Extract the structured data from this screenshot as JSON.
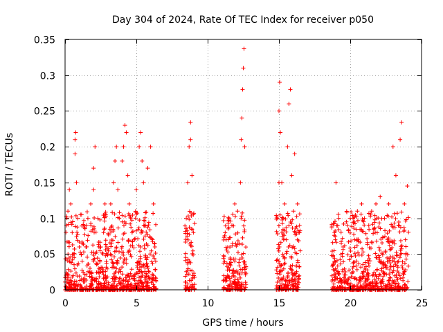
{
  "chart_data": {
    "type": "scatter",
    "title": "Day 304 of 2024, Rate Of TEC Index for receiver p050",
    "xlabel": "GPS time / hours",
    "ylabel": "ROTI / TECUs",
    "xlim": [
      0,
      25
    ],
    "ylim": [
      0,
      0.35
    ],
    "grid": true,
    "marker": "+",
    "color": "#ff0000",
    "x_ticks": [
      0,
      5,
      10,
      15,
      20,
      25
    ],
    "x_tick_labels": [
      "0",
      "5",
      "10",
      "15",
      "20",
      "25"
    ],
    "y_ticks": [
      0,
      0.05,
      0.1,
      0.15,
      0.2,
      0.25,
      0.3,
      0.35
    ],
    "y_tick_labels": [
      "0",
      "0.05",
      "0.1",
      "0.15",
      "0.2",
      "0.25",
      "0.3",
      "0.35"
    ],
    "series": [
      {
        "name": "ROTI",
        "observation_windows_hours": [
          [
            0,
            6.4
          ],
          [
            8.4,
            9.1
          ],
          [
            11.1,
            12.7
          ],
          [
            14.8,
            16.5
          ],
          [
            18.7,
            24.1
          ]
        ],
        "points": [
          [
            0.1,
            0.09
          ],
          [
            0.2,
            0.11
          ],
          [
            0.3,
            0.14
          ],
          [
            0.4,
            0.12
          ],
          [
            0.5,
            0.08
          ],
          [
            0.6,
            0.05
          ],
          [
            0.7,
            0.19
          ],
          [
            0.7,
            0.21
          ],
          [
            0.75,
            0.22
          ],
          [
            0.8,
            0.15
          ],
          [
            0.9,
            0.1
          ],
          [
            1.0,
            0.06
          ],
          [
            1.2,
            0.04
          ],
          [
            1.5,
            0.09
          ],
          [
            1.6,
            0.1
          ],
          [
            1.8,
            0.12
          ],
          [
            2.0,
            0.14
          ],
          [
            2.0,
            0.17
          ],
          [
            2.1,
            0.2
          ],
          [
            2.3,
            0.1
          ],
          [
            2.5,
            0.06
          ],
          [
            2.7,
            0.08
          ],
          [
            2.8,
            0.12
          ],
          [
            3.0,
            0.05
          ],
          [
            3.2,
            0.12
          ],
          [
            3.4,
            0.15
          ],
          [
            3.5,
            0.18
          ],
          [
            3.6,
            0.2
          ],
          [
            3.7,
            0.14
          ],
          [
            3.8,
            0.1
          ],
          [
            4.0,
            0.18
          ],
          [
            4.1,
            0.2
          ],
          [
            4.2,
            0.23
          ],
          [
            4.3,
            0.22
          ],
          [
            4.4,
            0.16
          ],
          [
            4.5,
            0.12
          ],
          [
            4.7,
            0.08
          ],
          [
            5.0,
            0.14
          ],
          [
            5.2,
            0.2
          ],
          [
            5.3,
            0.22
          ],
          [
            5.4,
            0.18
          ],
          [
            5.5,
            0.15
          ],
          [
            5.8,
            0.17
          ],
          [
            6.0,
            0.2
          ],
          [
            6.2,
            0.12
          ],
          [
            6.3,
            0.06
          ],
          [
            8.5,
            0.1
          ],
          [
            8.6,
            0.15
          ],
          [
            8.7,
            0.2
          ],
          [
            8.8,
            0.21
          ],
          [
            8.8,
            0.234
          ],
          [
            8.9,
            0.16
          ],
          [
            9.0,
            0.08
          ],
          [
            11.3,
            0.07
          ],
          [
            11.5,
            0.1
          ],
          [
            11.7,
            0.09
          ],
          [
            11.9,
            0.12
          ],
          [
            12.1,
            0.11
          ],
          [
            12.3,
            0.15
          ],
          [
            12.35,
            0.21
          ],
          [
            12.4,
            0.24
          ],
          [
            12.45,
            0.28
          ],
          [
            12.5,
            0.31
          ],
          [
            12.55,
            0.337
          ],
          [
            12.6,
            0.2
          ],
          [
            14.9,
            0.1
          ],
          [
            15.0,
            0.15
          ],
          [
            15.0,
            0.25
          ],
          [
            15.05,
            0.29
          ],
          [
            15.1,
            0.22
          ],
          [
            15.2,
            0.15
          ],
          [
            15.4,
            0.12
          ],
          [
            15.6,
            0.2
          ],
          [
            15.7,
            0.26
          ],
          [
            15.8,
            0.28
          ],
          [
            15.9,
            0.16
          ],
          [
            16.1,
            0.19
          ],
          [
            16.3,
            0.12
          ],
          [
            16.4,
            0.08
          ],
          [
            18.9,
            0.08
          ],
          [
            19.0,
            0.15
          ],
          [
            19.2,
            0.1
          ],
          [
            19.5,
            0.06
          ],
          [
            19.8,
            0.09
          ],
          [
            20.0,
            0.1
          ],
          [
            20.3,
            0.07
          ],
          [
            20.5,
            0.11
          ],
          [
            20.8,
            0.12
          ],
          [
            21.0,
            0.1
          ],
          [
            21.3,
            0.09
          ],
          [
            21.5,
            0.11
          ],
          [
            21.8,
            0.12
          ],
          [
            22.1,
            0.13
          ],
          [
            22.4,
            0.1
          ],
          [
            22.7,
            0.12
          ],
          [
            23.0,
            0.2
          ],
          [
            23.2,
            0.16
          ],
          [
            23.5,
            0.21
          ],
          [
            23.6,
            0.234
          ],
          [
            23.8,
            0.12
          ],
          [
            24.0,
            0.145
          ]
        ]
      }
    ]
  }
}
